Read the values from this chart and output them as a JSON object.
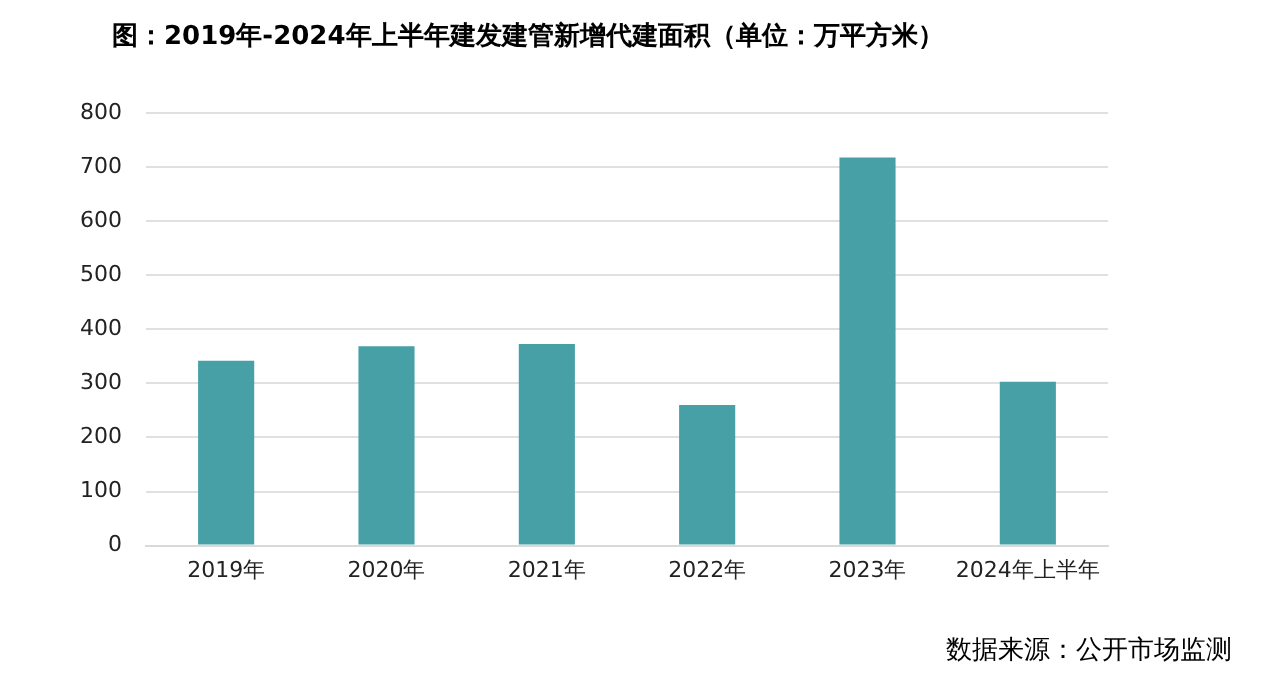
{
  "chart_data": {
    "type": "bar",
    "title": "图：2019年-2024年上半年建发建管新增代建面积（单位：万平方米）",
    "categories": [
      "2019年",
      "2020年",
      "2021年",
      "2022年",
      "2023年",
      "2024年上半年"
    ],
    "values": [
      342,
      369,
      373,
      260,
      718,
      303
    ],
    "color": "#46a0a5",
    "ylim": [
      0,
      800
    ],
    "yticks": [
      0,
      100,
      200,
      300,
      400,
      500,
      600,
      700,
      800
    ],
    "grid": "y",
    "legend": false,
    "annotations": [
      "数据来源：公开市场监测"
    ]
  }
}
